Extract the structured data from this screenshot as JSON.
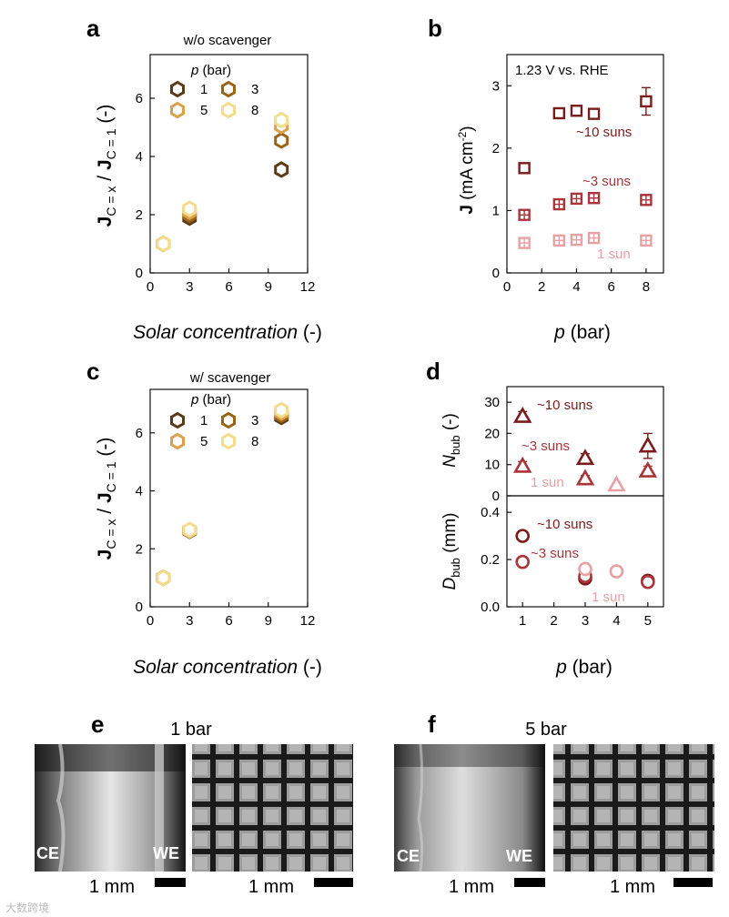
{
  "colors": {
    "p1": "#5a3b16",
    "p3": "#9a6418",
    "p5": "#dca04a",
    "p8": "#f3dc8c",
    "suns10": "#7b1c1c",
    "suns3": "#a8353a",
    "sun1": "#e9a0a4"
  },
  "panels": {
    "a": {
      "label": "a",
      "title": "w/o scavenger",
      "ylabel": "J_C=x / J_C=1 (-)",
      "ylabel_main": "J",
      "ylabel_sub1": "C = x",
      "ylabel_mid": " / ",
      "ylabel_sub2": "C = 1",
      "ylabel_unit": " (-)",
      "xlabel_italic": "Solar concentration",
      "xlabel_unit": " (-)",
      "legend_title_italic": "p",
      "legend_title": " (bar)",
      "legend": [
        {
          "label": "1",
          "color_key": "p1"
        },
        {
          "label": "3",
          "color_key": "p3"
        },
        {
          "label": "5",
          "color_key": "p5"
        },
        {
          "label": "8",
          "color_key": "p8"
        }
      ]
    },
    "b": {
      "label": "b",
      "annotation": "1.23 V vs. RHE",
      "ylabel": "J (mA cm-2)",
      "ylabel_main": "J",
      "ylabel_unit": " (mA cm",
      "ylabel_sup": "-2",
      "ylabel_close": ")",
      "xlabel_italic": "p",
      "xlabel_unit": " (bar)",
      "series_labels": [
        "~10 suns",
        "~3 suns",
        "1 sun"
      ]
    },
    "c": {
      "label": "c",
      "title": "w/ scavenger",
      "ylabel_main": "J",
      "ylabel_sub1": "C = x",
      "ylabel_mid": " / ",
      "ylabel_sub2": "C = 1",
      "ylabel_unit": " (-)",
      "xlabel_italic": "Solar concentration",
      "xlabel_unit": " (-)",
      "legend_title_italic": "p",
      "legend_title": " (bar)",
      "legend": [
        {
          "label": "1",
          "color_key": "p1"
        },
        {
          "label": "3",
          "color_key": "p3"
        },
        {
          "label": "5",
          "color_key": "p5"
        },
        {
          "label": "8",
          "color_key": "p8"
        }
      ]
    },
    "d": {
      "label": "d",
      "top_ylabel_main": "N",
      "top_ylabel_sub": "bub",
      "top_ylabel_unit": " (-)",
      "bottom_ylabel_main": "D",
      "bottom_ylabel_sub": "bub",
      "bottom_ylabel_unit": " (mm)",
      "xlabel_italic": "p",
      "xlabel_unit": " (bar)",
      "top_series_labels": [
        "~10 suns",
        "~3 suns",
        "1 sun"
      ],
      "bottom_series_labels": [
        "~10 suns",
        "~3 suns",
        "1 sun"
      ]
    },
    "e": {
      "label": "e",
      "title": "1 bar",
      "ce": "CE",
      "we": "WE",
      "scale1": "1 mm",
      "scale2": "1 mm"
    },
    "f": {
      "label": "f",
      "title": "5 bar",
      "ce": "CE",
      "we": "WE",
      "scale1": "1 mm",
      "scale2": "1 mm"
    }
  },
  "watermark": "大数跨境",
  "chart_data": [
    {
      "panel": "a",
      "type": "scatter",
      "title": "w/o scavenger",
      "xlabel": "Solar concentration (-)",
      "ylabel": "J_C=x / J_C=1 (-)",
      "xlim": [
        0,
        12
      ],
      "ylim": [
        0,
        7.5
      ],
      "xticks": [
        0,
        3,
        6,
        9,
        12
      ],
      "yticks": [
        0,
        2,
        4,
        6
      ],
      "series": [
        {
          "name": "1",
          "color_key": "p1",
          "x": [
            1,
            3,
            10
          ],
          "y": [
            1.0,
            1.9,
            3.55
          ]
        },
        {
          "name": "3",
          "color_key": "p3",
          "x": [
            1,
            3,
            10
          ],
          "y": [
            1.0,
            2.0,
            4.55
          ]
        },
        {
          "name": "5",
          "color_key": "p5",
          "x": [
            1,
            3,
            10
          ],
          "y": [
            1.0,
            2.1,
            5.05
          ]
        },
        {
          "name": "8",
          "color_key": "p8",
          "x": [
            1,
            3,
            10
          ],
          "y": [
            1.0,
            2.2,
            5.25
          ]
        }
      ]
    },
    {
      "panel": "b",
      "type": "scatter",
      "xlabel": "p (bar)",
      "ylabel": "J (mA cm-2)",
      "xlim": [
        0,
        9
      ],
      "ylim": [
        0,
        3.5
      ],
      "xticks": [
        0,
        2,
        4,
        6,
        8
      ],
      "yticks": [
        0,
        1,
        2,
        3
      ],
      "series": [
        {
          "name": "~10 suns",
          "color_key": "suns10",
          "x": [
            1,
            3,
            4,
            5,
            8
          ],
          "y": [
            1.68,
            2.56,
            2.6,
            2.55,
            2.75
          ],
          "err": [
            0.03,
            0.04,
            0.06,
            0.06,
            0.22
          ]
        },
        {
          "name": "~3 suns",
          "color_key": "suns3",
          "x": [
            1,
            3,
            4,
            5,
            8
          ],
          "y": [
            0.93,
            1.1,
            1.19,
            1.2,
            1.17
          ],
          "err": [
            0.04,
            0.04,
            0.05,
            0.05,
            0.05
          ]
        },
        {
          "name": "1 sun",
          "color_key": "sun1",
          "x": [
            1,
            3,
            4,
            5,
            8
          ],
          "y": [
            0.48,
            0.52,
            0.53,
            0.56,
            0.52
          ],
          "err": [
            0.03,
            0.03,
            0.03,
            0.05,
            0.03
          ]
        }
      ]
    },
    {
      "panel": "c",
      "type": "scatter",
      "title": "w/ scavenger",
      "xlabel": "Solar concentration (-)",
      "ylabel": "J_C=x / J_C=1 (-)",
      "xlim": [
        0,
        12
      ],
      "ylim": [
        0,
        7.5
      ],
      "xticks": [
        0,
        3,
        6,
        9,
        12
      ],
      "yticks": [
        0,
        2,
        4,
        6
      ],
      "series": [
        {
          "name": "1",
          "color_key": "p1",
          "x": [
            1,
            3,
            10
          ],
          "y": [
            1.0,
            2.62,
            6.55
          ]
        },
        {
          "name": "3",
          "color_key": "p3",
          "x": [
            1,
            3,
            10
          ],
          "y": [
            1.0,
            2.63,
            6.62
          ]
        },
        {
          "name": "5",
          "color_key": "p5",
          "x": [
            1,
            3,
            10
          ],
          "y": [
            1.0,
            2.64,
            6.7
          ]
        },
        {
          "name": "8",
          "color_key": "p8",
          "x": [
            1,
            3,
            10
          ],
          "y": [
            1.0,
            2.65,
            6.78
          ]
        }
      ]
    },
    {
      "panel": "d-top",
      "type": "scatter",
      "xlabel": "p (bar)",
      "ylabel": "N_bub (-)",
      "xlim": [
        0.5,
        5.5
      ],
      "ylim": [
        0,
        35
      ],
      "xticks": [
        1,
        2,
        3,
        4,
        5
      ],
      "yticks": [
        0,
        10,
        20,
        30
      ],
      "series": [
        {
          "name": "~10 suns",
          "color_key": "suns10",
          "x": [
            1,
            3,
            5
          ],
          "y": [
            25.5,
            12,
            16
          ],
          "err": [
            1.5,
            1.5,
            4
          ]
        },
        {
          "name": "~3 suns",
          "color_key": "suns3",
          "x": [
            1,
            3,
            5
          ],
          "y": [
            9.5,
            5.5,
            8
          ],
          "err": [
            1.5,
            1,
            1.5
          ]
        },
        {
          "name": "1 sun",
          "color_key": "sun1",
          "x": [
            4
          ],
          "y": [
            3.5
          ],
          "err": [
            0.5
          ]
        }
      ]
    },
    {
      "panel": "d-bottom",
      "type": "scatter",
      "xlabel": "p (bar)",
      "ylabel": "D_bub (mm)",
      "xlim": [
        0.5,
        5.5
      ],
      "ylim": [
        0,
        0.47
      ],
      "xticks": [
        1,
        2,
        3,
        4,
        5
      ],
      "yticks": [
        0.0,
        0.2,
        0.4
      ],
      "series": [
        {
          "name": "~10 suns",
          "color_key": "suns10",
          "x": [
            1,
            3,
            5
          ],
          "y": [
            0.3,
            0.12,
            0.11
          ]
        },
        {
          "name": "~3 suns",
          "color_key": "suns3",
          "x": [
            1,
            3,
            5
          ],
          "y": [
            0.19,
            0.13,
            0.105
          ]
        },
        {
          "name": "1 sun",
          "color_key": "sun1",
          "x": [
            3,
            4
          ],
          "y": [
            0.16,
            0.15
          ]
        }
      ]
    }
  ]
}
